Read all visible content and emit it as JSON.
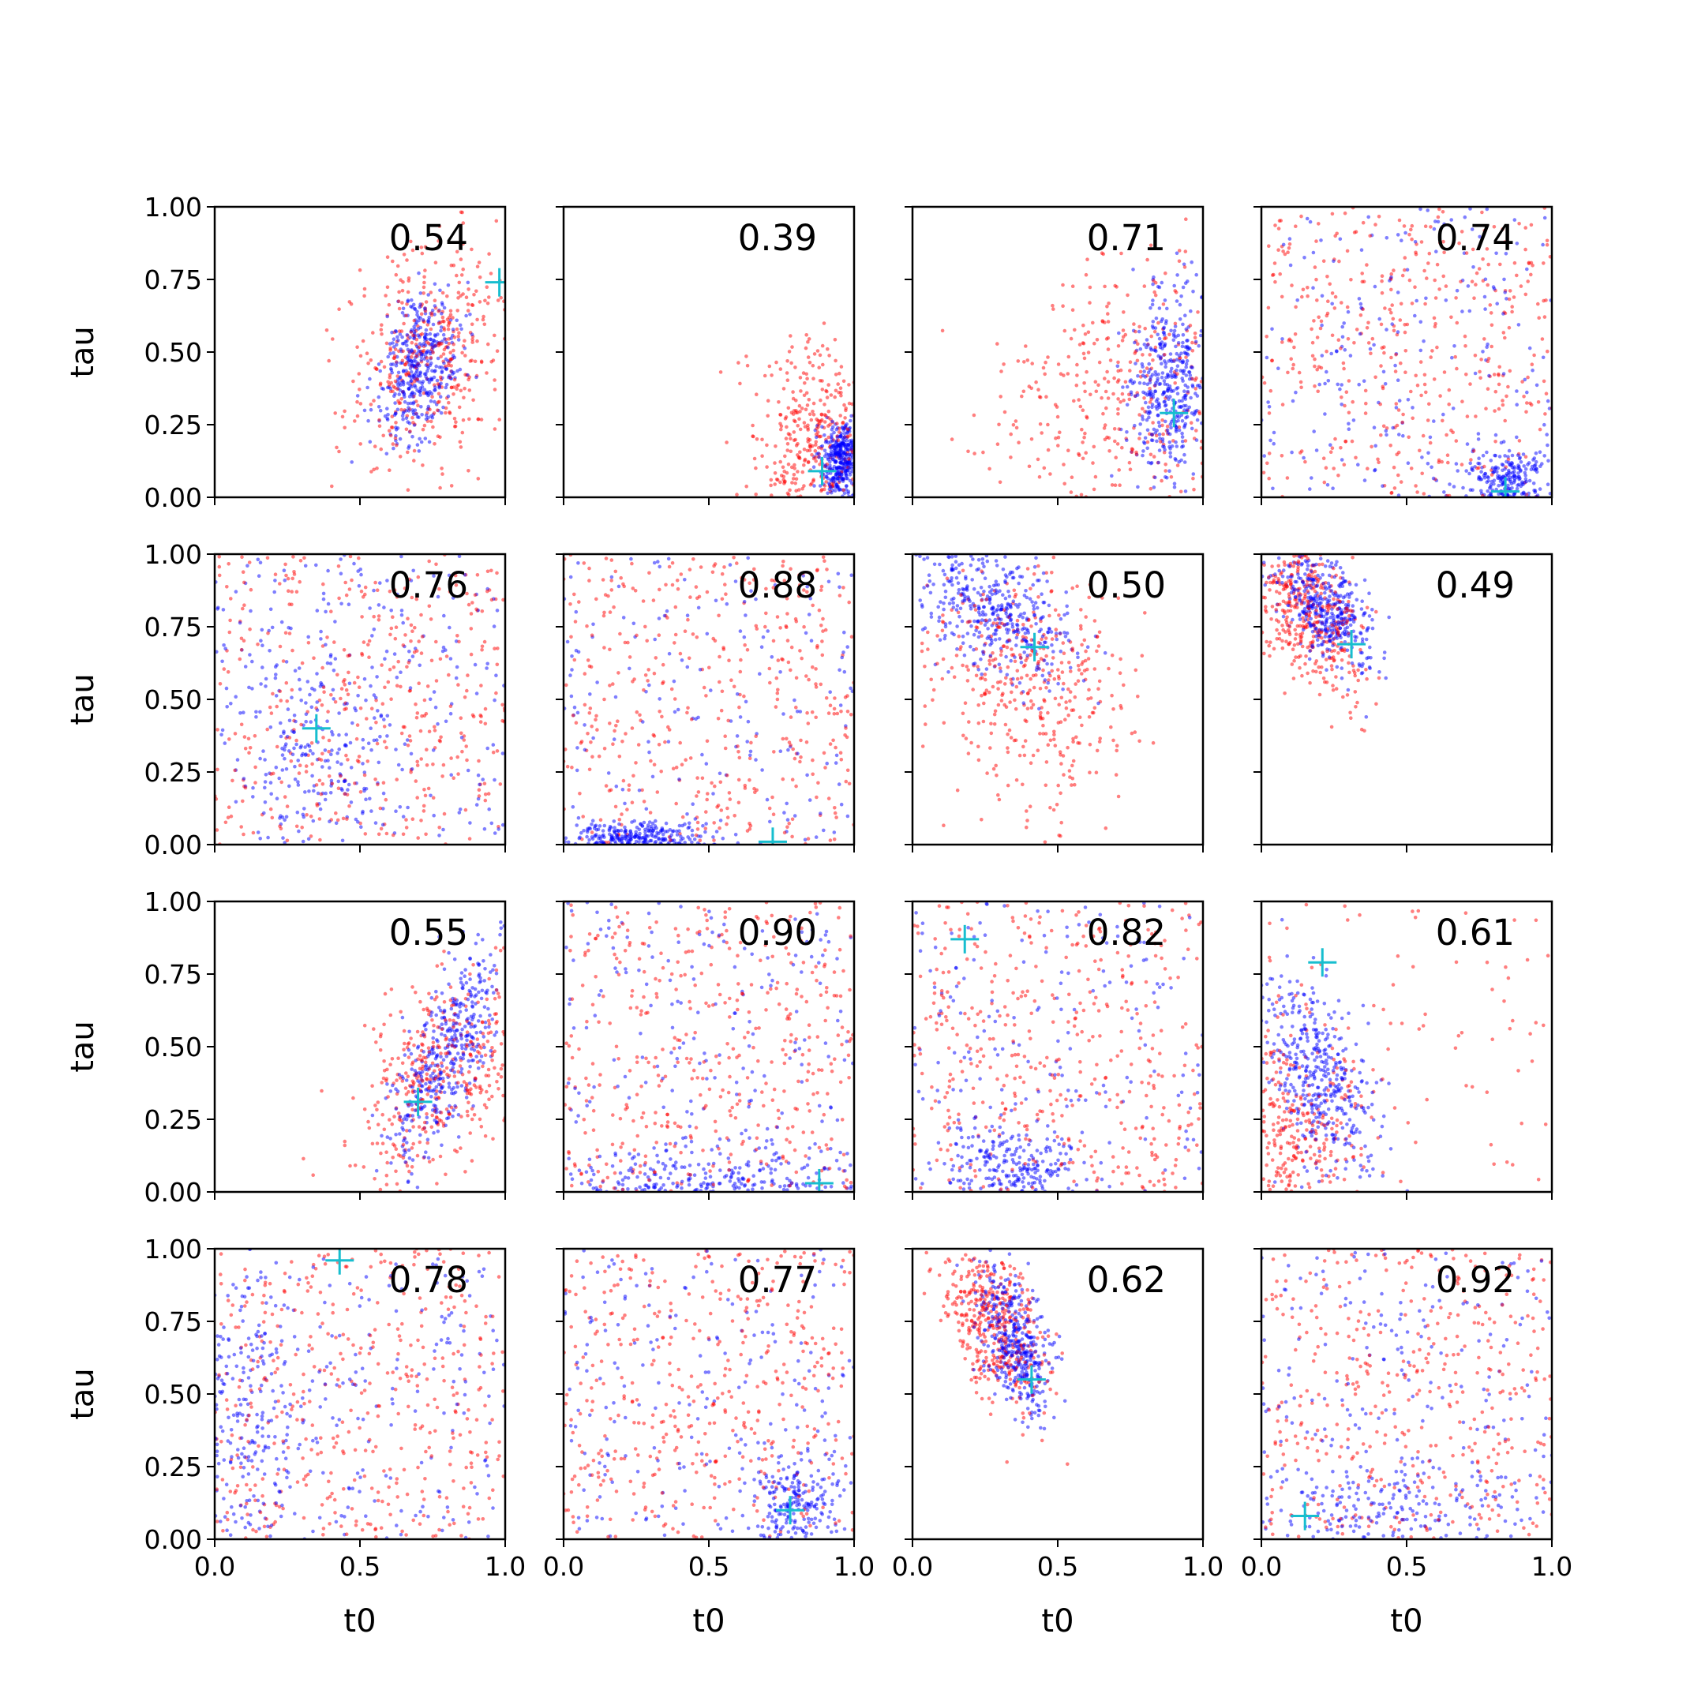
{
  "chart_data": {
    "type": "scatter",
    "layout": "4x4 grid of subplots, shared axes",
    "xlabel": "t0",
    "ylabel": "tau",
    "xlim": [
      0,
      1
    ],
    "ylim": [
      0,
      1
    ],
    "xticks": [
      "0.0",
      "0.5",
      "1.0"
    ],
    "yticks": [
      "0.00",
      "0.25",
      "0.50",
      "0.75",
      "1.00"
    ],
    "grid": false,
    "legend": "none",
    "series_colors": {
      "red": "#ff0000",
      "blue": "#0000ff",
      "marker": "#17becf"
    },
    "panels": [
      {
        "score": "0.54",
        "marker": [
          0.98,
          0.74
        ],
        "red": {
          "cx": 0.74,
          "cy": 0.5,
          "sx": 0.14,
          "sy": 0.2,
          "rho": 0.3
        },
        "blue": {
          "cx": 0.7,
          "cy": 0.45,
          "sx": 0.07,
          "sy": 0.12,
          "rho": 0.3
        }
      },
      {
        "score": "0.39",
        "marker": [
          0.89,
          0.09
        ],
        "red": {
          "cx": 0.88,
          "cy": 0.18,
          "sx": 0.12,
          "sy": 0.18,
          "rho": 0.0
        },
        "blue": {
          "cx": 0.96,
          "cy": 0.13,
          "sx": 0.04,
          "sy": 0.06,
          "rho": 0.0
        }
      },
      {
        "score": "0.71",
        "marker": [
          0.9,
          0.29
        ],
        "red": {
          "cx": 0.75,
          "cy": 0.35,
          "sx": 0.24,
          "sy": 0.25,
          "rho": 0.2
        },
        "blue": {
          "cx": 0.88,
          "cy": 0.38,
          "sx": 0.07,
          "sy": 0.16,
          "rho": 0.2
        }
      },
      {
        "score": "0.74",
        "marker": [
          0.84,
          0.02
        ],
        "red": {
          "uniform": true
        },
        "blue": {
          "cx": 0.85,
          "cy": 0.07,
          "sx": 0.06,
          "sy": 0.05,
          "rho": 0.0,
          "mix": 0.5,
          "floor": 0.08
        }
      },
      {
        "score": "0.76",
        "marker": [
          0.35,
          0.4
        ],
        "red": {
          "uniform": true
        },
        "blue": {
          "cx": 0.35,
          "cy": 0.35,
          "sx": 0.14,
          "sy": 0.22,
          "rho": -0.3,
          "mix": 0.5
        }
      },
      {
        "score": "0.88",
        "marker": [
          0.72,
          0.01
        ],
        "red": {
          "uniform": true
        },
        "blue": {
          "cx": 0.25,
          "cy": 0.03,
          "sx": 0.12,
          "sy": 0.03,
          "rho": 0.0,
          "mix": 0.55,
          "floor": 0.03
        }
      },
      {
        "score": "0.50",
        "marker": [
          0.42,
          0.68
        ],
        "red": {
          "cx": 0.4,
          "cy": 0.55,
          "sx": 0.17,
          "sy": 0.22,
          "rho": -0.2
        },
        "blue": {
          "cx": 0.28,
          "cy": 0.8,
          "sx": 0.14,
          "sy": 0.12,
          "rho": -0.5
        }
      },
      {
        "score": "0.49",
        "marker": [
          0.31,
          0.69
        ],
        "red": {
          "cx": 0.15,
          "cy": 0.82,
          "sx": 0.1,
          "sy": 0.15,
          "rho": -0.4
        },
        "blue": {
          "cx": 0.22,
          "cy": 0.82,
          "sx": 0.08,
          "sy": 0.1,
          "rho": -0.5
        }
      },
      {
        "score": "0.55",
        "marker": [
          0.7,
          0.31
        ],
        "red": {
          "cx": 0.78,
          "cy": 0.4,
          "sx": 0.15,
          "sy": 0.2,
          "rho": 0.4
        },
        "blue": {
          "cx": 0.8,
          "cy": 0.48,
          "sx": 0.1,
          "sy": 0.18,
          "rho": 0.7
        }
      },
      {
        "score": "0.90",
        "marker": [
          0.88,
          0.03
        ],
        "red": {
          "uniform": true
        },
        "blue": {
          "cx": 0.5,
          "cy": 0.05,
          "sx": 0.3,
          "sy": 0.06,
          "rho": 0.0,
          "mix": 0.5,
          "floor": 0.03
        }
      },
      {
        "score": "0.82",
        "marker": [
          0.18,
          0.87
        ],
        "red": {
          "uniform": true
        },
        "blue": {
          "cx": 0.35,
          "cy": 0.08,
          "sx": 0.12,
          "sy": 0.07,
          "rho": 0.0,
          "mix": 0.55
        }
      },
      {
        "score": "0.61",
        "marker": [
          0.21,
          0.79
        ],
        "red": {
          "cx": 0.1,
          "cy": 0.18,
          "sx": 0.12,
          "sy": 0.18,
          "rho": 0.0,
          "mix": 0.8
        },
        "blue": {
          "cx": 0.2,
          "cy": 0.4,
          "sx": 0.1,
          "sy": 0.18,
          "rho": -0.6
        }
      },
      {
        "score": "0.78",
        "marker": [
          0.43,
          0.96
        ],
        "red": {
          "uniform": true
        },
        "blue": {
          "cx": 0.1,
          "cy": 0.4,
          "sx": 0.1,
          "sy": 0.25,
          "rho": 0.0,
          "mix": 0.5
        }
      },
      {
        "score": "0.77",
        "marker": [
          0.78,
          0.1
        ],
        "red": {
          "uniform": true
        },
        "blue": {
          "cx": 0.8,
          "cy": 0.12,
          "sx": 0.08,
          "sy": 0.09,
          "rho": 0.0,
          "mix": 0.5
        }
      },
      {
        "score": "0.62",
        "marker": [
          0.41,
          0.55
        ],
        "red": {
          "cx": 0.28,
          "cy": 0.75,
          "sx": 0.09,
          "sy": 0.14,
          "rho": -0.5
        },
        "blue": {
          "cx": 0.35,
          "cy": 0.68,
          "sx": 0.06,
          "sy": 0.13,
          "rho": -0.5
        }
      },
      {
        "score": "0.92",
        "marker": [
          0.15,
          0.08
        ],
        "red": {
          "uniform": true
        },
        "blue": {
          "cx": 0.4,
          "cy": 0.08,
          "sx": 0.25,
          "sy": 0.08,
          "rho": 0.0,
          "mix": 0.5
        }
      }
    ]
  }
}
